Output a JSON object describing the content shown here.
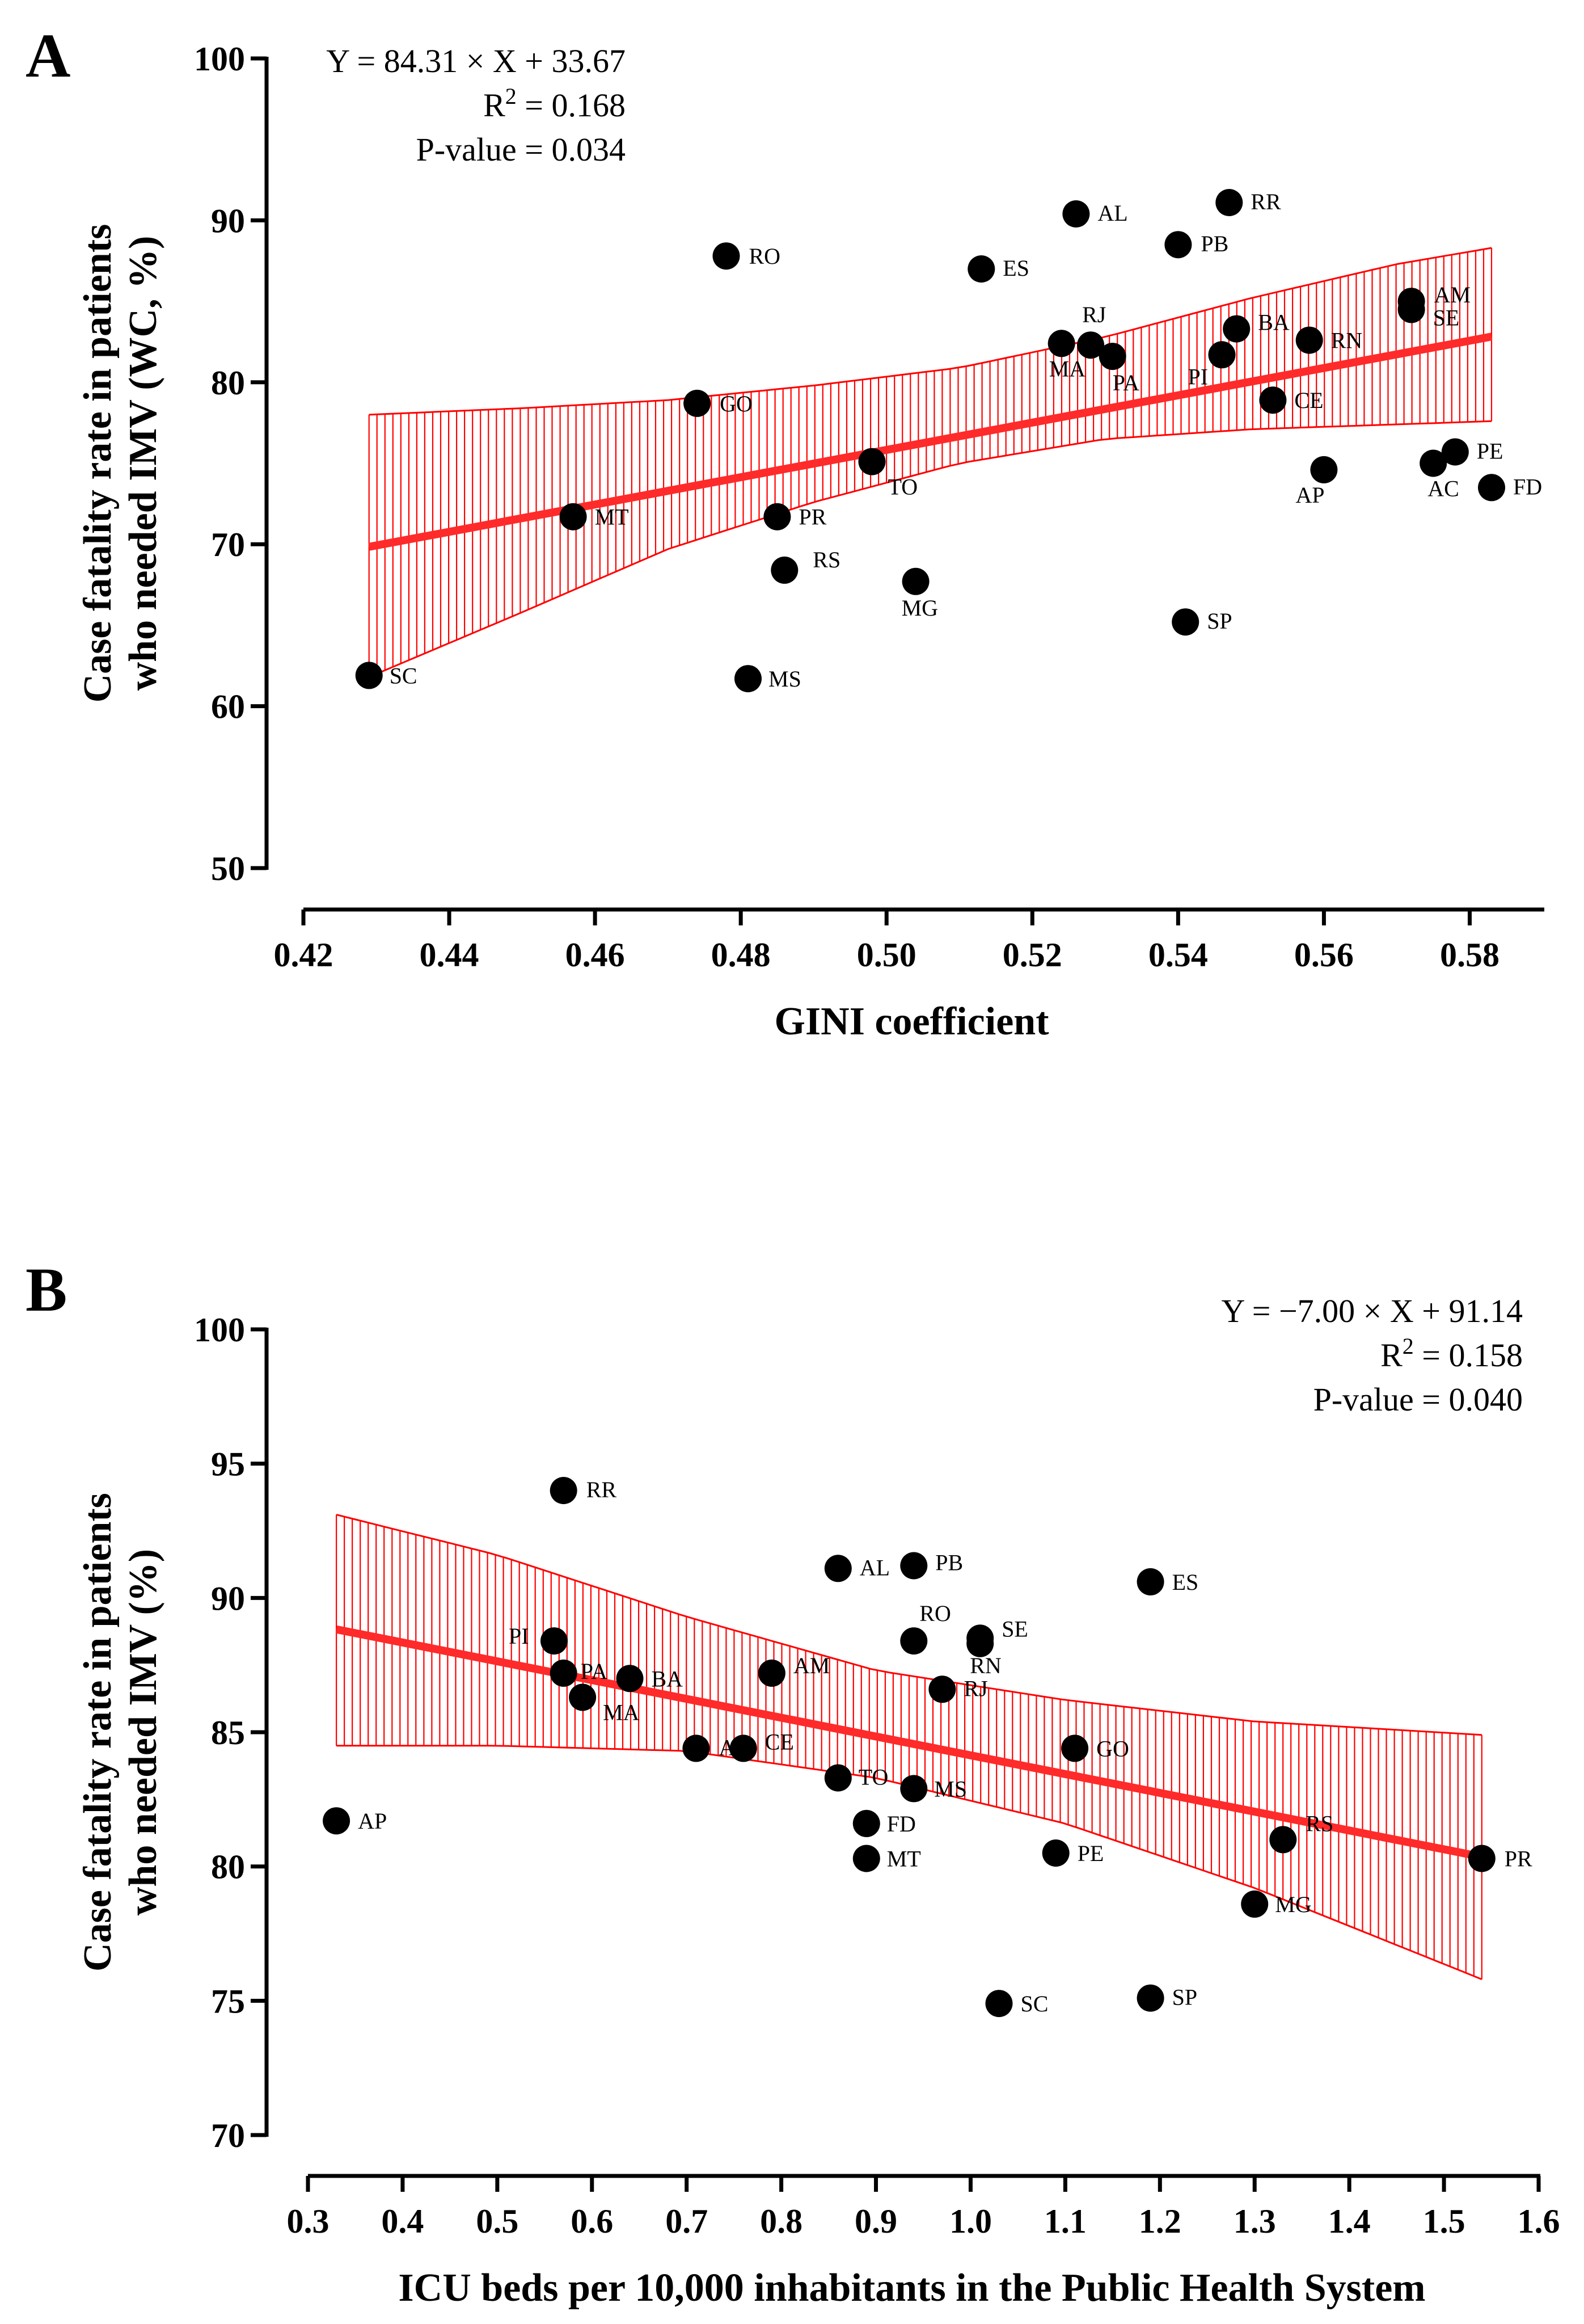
{
  "chart_data": [
    {
      "panel": "A",
      "type": "scatter",
      "xlabel": "GINI coefficient",
      "ylabel_lines": [
        "Case fatality rate in patients",
        "who needed IMV (WC, %)"
      ],
      "xlim": [
        0.42,
        0.59
      ],
      "ylim": [
        50,
        100
      ],
      "xticks": [
        0.42,
        0.44,
        0.46,
        0.48,
        0.5,
        0.52,
        0.54,
        0.56,
        0.58
      ],
      "xtick_labels": [
        "0.42",
        "0.44",
        "0.46",
        "0.48",
        "0.50",
        "0.52",
        "0.54",
        "0.56",
        "0.58"
      ],
      "yticks": [
        50,
        60,
        70,
        80,
        90,
        100
      ],
      "ytick_labels": [
        "50",
        "60",
        "70",
        "80",
        "90",
        "100"
      ],
      "equation": "Y = 84.31 × X + 33.67",
      "r2_prefix": "R",
      "r2_sup": "2",
      "r2_value": " = 0.168",
      "pvalue": "P-value = 0.034",
      "stats_position": "top-left",
      "regression": {
        "slope": 84.31,
        "intercept": 33.67,
        "x_range": [
          0.429,
          0.583
        ]
      },
      "ci": {
        "x": [
          0.429,
          0.45,
          0.47,
          0.49,
          0.51,
          0.53,
          0.55,
          0.57,
          0.583
        ],
        "lower": [
          61.8,
          65.8,
          69.7,
          72.6,
          75.0,
          76.5,
          77.1,
          77.4,
          77.6
        ],
        "upper": [
          78.0,
          78.4,
          78.9,
          79.8,
          80.9,
          82.8,
          85.2,
          87.3,
          88.3
        ]
      },
      "points": [
        {
          "label": "RO",
          "x": 0.478,
          "y": 87.8
        },
        {
          "label": "AL",
          "x": 0.526,
          "y": 90.4
        },
        {
          "label": "RR",
          "x": 0.547,
          "y": 91.1
        },
        {
          "label": "PB",
          "x": 0.54,
          "y": 88.5
        },
        {
          "label": "ES",
          "x": 0.513,
          "y": 87.0
        },
        {
          "label": "AM",
          "x": 0.572,
          "y": 85.0
        },
        {
          "label": "SE",
          "x": 0.572,
          "y": 84.5
        },
        {
          "label": "RJ",
          "x": 0.528,
          "y": 82.3
        },
        {
          "label": "MA",
          "x": 0.524,
          "y": 82.4
        },
        {
          "label": "PA",
          "x": 0.531,
          "y": 81.6
        },
        {
          "label": "BA",
          "x": 0.548,
          "y": 83.3
        },
        {
          "label": "RN",
          "x": 0.558,
          "y": 82.6
        },
        {
          "label": "PI",
          "x": 0.546,
          "y": 81.7
        },
        {
          "label": "CE",
          "x": 0.553,
          "y": 78.9
        },
        {
          "label": "GO",
          "x": 0.474,
          "y": 78.7
        },
        {
          "label": "TO",
          "x": 0.498,
          "y": 75.1
        },
        {
          "label": "AP",
          "x": 0.56,
          "y": 74.6
        },
        {
          "label": "AC",
          "x": 0.575,
          "y": 75.0
        },
        {
          "label": "PE",
          "x": 0.578,
          "y": 75.7
        },
        {
          "label": "FD",
          "x": 0.583,
          "y": 73.5
        },
        {
          "label": "MT",
          "x": 0.457,
          "y": 71.7
        },
        {
          "label": "PR",
          "x": 0.485,
          "y": 71.7
        },
        {
          "label": "RS",
          "x": 0.486,
          "y": 68.4
        },
        {
          "label": "MG",
          "x": 0.504,
          "y": 67.7
        },
        {
          "label": "SP",
          "x": 0.541,
          "y": 65.2
        },
        {
          "label": "MS",
          "x": 0.481,
          "y": 61.7
        },
        {
          "label": "SC",
          "x": 0.429,
          "y": 61.9
        }
      ]
    },
    {
      "panel": "B",
      "type": "scatter",
      "xlabel": "ICU beds per 10,000 inhabitants in the Public Health System",
      "ylabel_lines": [
        "Case fatality rate in patients",
        "who needed IMV (%)"
      ],
      "xlim": [
        0.3,
        1.6
      ],
      "ylim": [
        70,
        100
      ],
      "xticks": [
        0.3,
        0.4,
        0.5,
        0.6,
        0.7,
        0.8,
        0.9,
        1.0,
        1.1,
        1.2,
        1.3,
        1.4,
        1.5,
        1.6
      ],
      "xtick_labels": [
        "0.3",
        "0.4",
        "0.5",
        "0.6",
        "0.7",
        "0.8",
        "0.9",
        "1.0",
        "1.1",
        "1.2",
        "1.3",
        "1.4",
        "1.5",
        "1.6"
      ],
      "yticks": [
        70,
        75,
        80,
        85,
        90,
        95,
        100
      ],
      "ytick_labels": [
        "70",
        "75",
        "80",
        "85",
        "90",
        "95",
        "100"
      ],
      "equation": "Y = −7.00 × X + 91.14",
      "r2_prefix": "R",
      "r2_sup": "2",
      "r2_value": " = 0.158",
      "pvalue": "P-value = 0.040",
      "stats_position": "top-right",
      "regression": {
        "slope": -7.0,
        "intercept": 91.14,
        "x_range": [
          0.33,
          1.54
        ]
      },
      "ci": {
        "x": [
          0.33,
          0.5,
          0.7,
          0.9,
          1.1,
          1.3,
          1.54
        ],
        "lower": [
          84.5,
          84.5,
          84.3,
          83.3,
          81.6,
          79.2,
          75.8
        ],
        "upper": [
          93.1,
          91.6,
          89.3,
          87.3,
          86.2,
          85.4,
          84.9
        ]
      },
      "points": [
        {
          "label": "RR",
          "x": 0.57,
          "y": 94.0
        },
        {
          "label": "AL",
          "x": 0.86,
          "y": 91.1
        },
        {
          "label": "PB",
          "x": 0.94,
          "y": 91.2
        },
        {
          "label": "ES",
          "x": 1.19,
          "y": 90.6
        },
        {
          "label": "RO",
          "x": 0.94,
          "y": 88.4
        },
        {
          "label": "SE",
          "x": 1.01,
          "y": 88.5
        },
        {
          "label": "RN",
          "x": 1.01,
          "y": 88.3
        },
        {
          "label": "RJ",
          "x": 0.97,
          "y": 86.6
        },
        {
          "label": "PI",
          "x": 0.56,
          "y": 88.4
        },
        {
          "label": "PA",
          "x": 0.57,
          "y": 87.2
        },
        {
          "label": "MA",
          "x": 0.59,
          "y": 86.3
        },
        {
          "label": "BA",
          "x": 0.64,
          "y": 87.0
        },
        {
          "label": "AM",
          "x": 0.79,
          "y": 87.2
        },
        {
          "label": "AC",
          "x": 0.71,
          "y": 84.4
        },
        {
          "label": "CE",
          "x": 0.76,
          "y": 84.4
        },
        {
          "label": "GO",
          "x": 1.11,
          "y": 84.4
        },
        {
          "label": "TO",
          "x": 0.86,
          "y": 83.3
        },
        {
          "label": "MS",
          "x": 0.94,
          "y": 82.9
        },
        {
          "label": "FD",
          "x": 0.89,
          "y": 81.6
        },
        {
          "label": "MT",
          "x": 0.89,
          "y": 80.3
        },
        {
          "label": "PE",
          "x": 1.09,
          "y": 80.5
        },
        {
          "label": "AP",
          "x": 0.33,
          "y": 81.7
        },
        {
          "label": "RS",
          "x": 1.33,
          "y": 81.0
        },
        {
          "label": "PR",
          "x": 1.54,
          "y": 80.3
        },
        {
          "label": "MG",
          "x": 1.3,
          "y": 78.6
        },
        {
          "label": "SC",
          "x": 1.03,
          "y": 74.9
        },
        {
          "label": "SP",
          "x": 1.19,
          "y": 75.1
        }
      ]
    }
  ]
}
